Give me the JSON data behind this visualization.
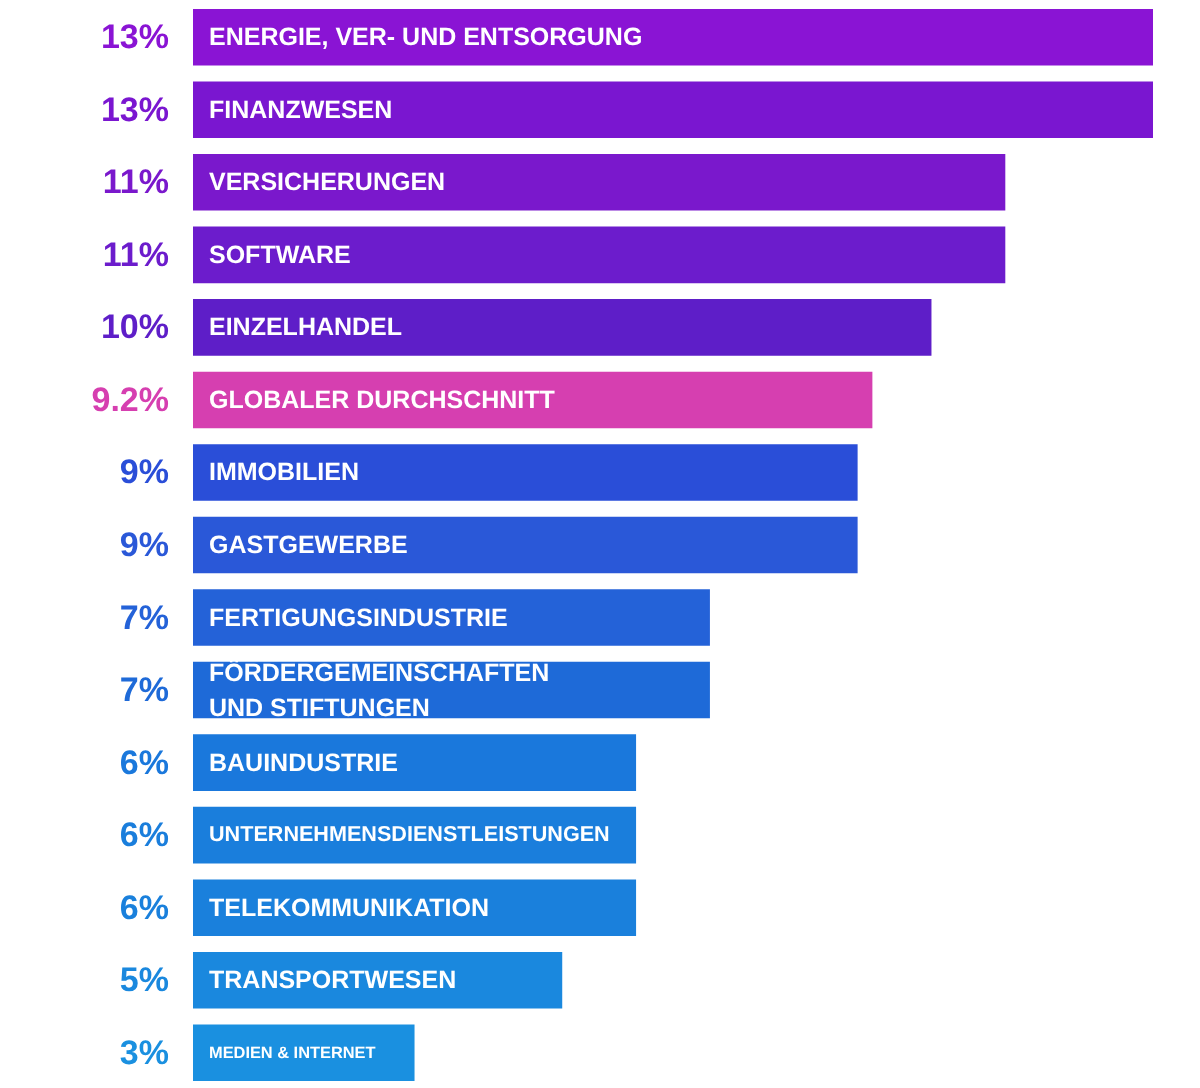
{
  "chart_data": {
    "type": "bar",
    "orientation": "horizontal",
    "categories": [
      "ENERGIE, VER- UND ENTSORGUNG",
      "FINANZWESEN",
      "VERSICHERUNGEN",
      "SOFTWARE",
      "EINZELHANDEL",
      "GLOBALER DURCHSCHNITT",
      "IMMOBILIEN",
      "GASTGEWERBE",
      "FERTIGUNGSINDUSTRIE",
      "FÖRDERGEMEINSCHAFTEN\nUND STIFTUNGEN",
      "BAUINDUSTRIE",
      "UNTERNEHMENSDIENSTLEISTUNGEN",
      "TELEKOMMUNIKATION",
      "TRANSPORTWESEN",
      "MEDIEN & INTERNET"
    ],
    "values": [
      13,
      13,
      11,
      11,
      10,
      9.2,
      9,
      9,
      7,
      7,
      6,
      6,
      6,
      5,
      3
    ],
    "value_labels": [
      "13%",
      "13%",
      "11%",
      "11%",
      "10%",
      "9.2%",
      "9%",
      "9%",
      "7%",
      "7%",
      "6%",
      "6%",
      "6%",
      "5%",
      "3%"
    ],
    "colors": [
      "#8a14d4",
      "#7a16d0",
      "#7a18cc",
      "#6c1ccc",
      "#5e1ec8",
      "#d63fb0",
      "#2a4ed8",
      "#2a58d8",
      "#2462d8",
      "#1e6ad8",
      "#1a78dc",
      "#1a7edc",
      "#1a80dc",
      "#1a88de",
      "#1a90e0"
    ],
    "grid": false
  }
}
